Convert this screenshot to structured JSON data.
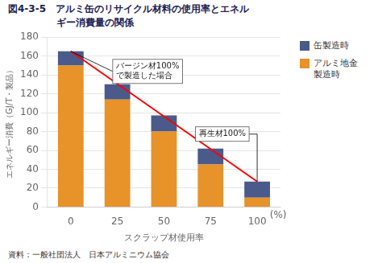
{
  "chart_data": {
    "type": "bar",
    "title": "図4-3-5　アルミ缶のリサイクル材料の使用率とエネル\n　　　　　ギー消費量の関係",
    "xlabel": "スクラップ材使用率",
    "x_unit": "(%)",
    "ylabel": "エネルギー消費（GJ/T・製品）",
    "source": "資料：一般社団法人　日本アルミニウム協会",
    "categories": [
      "0",
      "25",
      "50",
      "75",
      "100"
    ],
    "series": [
      {
        "name": "アルミ地金\n製造時",
        "color": "#E8922A",
        "values": [
          150,
          114,
          80,
          45,
          10
        ]
      },
      {
        "name": "缶製造時",
        "color": "#4A5A8A",
        "values": [
          15,
          16,
          17,
          17,
          17
        ]
      },
      {
        "type": "line",
        "color": "red",
        "values": [
          165,
          null,
          null,
          null,
          27
        ]
      }
    ],
    "stacked": true,
    "ylim": [
      0,
      180
    ],
    "yticks": [
      0,
      20,
      40,
      60,
      80,
      100,
      120,
      140,
      160,
      180
    ],
    "grid": true,
    "legend": "right",
    "annotations": [
      {
        "text": "バージン材100%\nで製造した場合",
        "x": "0",
        "y": 165
      },
      {
        "text": "再生材100%",
        "x": "100",
        "y": 27
      }
    ]
  }
}
